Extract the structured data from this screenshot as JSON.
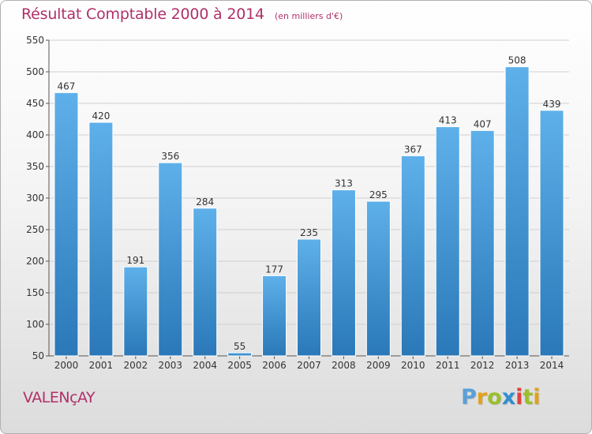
{
  "header": {
    "title": "Résultat Comptable 2000 à 2014",
    "unit": "(en milliers d'€)"
  },
  "footer": {
    "city": "VALENçAY",
    "brand": "Proxiti",
    "brand_letter_colors": [
      "#5aa0d8",
      "#e2a01c",
      "#9bbf2a",
      "#2f8fd0",
      "#e23f3f",
      "#9bbf2a",
      "#e2a01c"
    ]
  },
  "colors": {
    "title": "#b0306a",
    "bar_light": "#5eb0ea",
    "bar_dark": "#2a78b8",
    "grid": "#cfcfcf",
    "axis": "#555555"
  },
  "chart_data": {
    "type": "bar",
    "categories": [
      "2000",
      "2001",
      "2002",
      "2003",
      "2004",
      "2005",
      "2006",
      "2007",
      "2008",
      "2009",
      "2010",
      "2011",
      "2012",
      "2013",
      "2014"
    ],
    "values": [
      467,
      420,
      191,
      356,
      284,
      55,
      177,
      235,
      313,
      295,
      367,
      413,
      407,
      508,
      439
    ],
    "title": "Résultat Comptable 2000 à 2014",
    "xlabel": "",
    "ylabel": "",
    "ylim": [
      50,
      550
    ],
    "yticks": [
      50,
      100,
      150,
      200,
      250,
      300,
      350,
      400,
      450,
      500,
      550
    ],
    "grid": true,
    "data_labels": true
  }
}
